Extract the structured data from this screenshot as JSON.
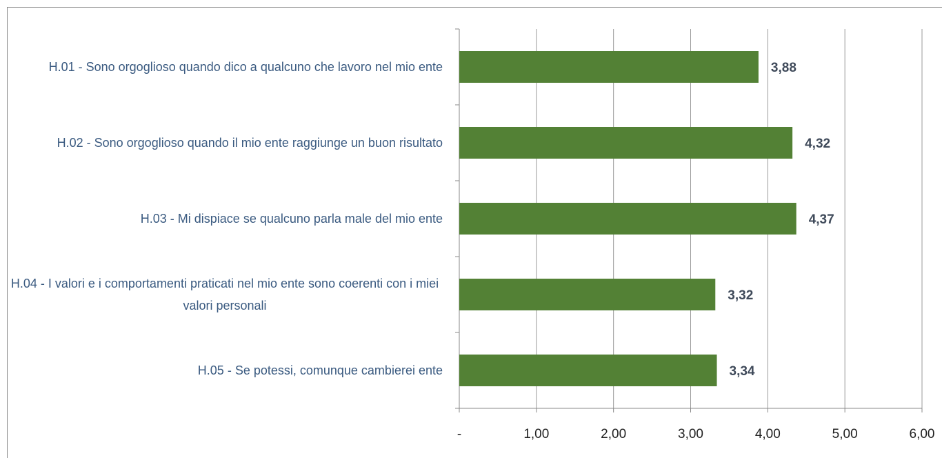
{
  "chart_data": {
    "type": "bar",
    "orientation": "horizontal",
    "categories": [
      "H.01 - Sono orgoglioso quando dico a qualcuno che lavoro nel mio ente",
      "H.02 - Sono orgoglioso quando il mio ente raggiunge un buon risultato",
      "H.03 - Mi dispiace se qualcuno parla male del mio ente",
      "H.04 - I valori e i comportamenti praticati nel mio ente sono coerenti con i miei valori personali",
      "H.05 - Se potessi, comunque cambierei ente"
    ],
    "values": [
      3.88,
      4.32,
      4.37,
      3.32,
      3.34
    ],
    "value_labels": [
      "3,88",
      "4,32",
      "4,37",
      "3,32",
      "3,34"
    ],
    "color": "#538135",
    "xlim": [
      0,
      6
    ],
    "xticks": [
      {
        "value": 0,
        "label": "-"
      },
      {
        "value": 1,
        "label": "1,00"
      },
      {
        "value": 2,
        "label": "2,00"
      },
      {
        "value": 3,
        "label": "3,00"
      },
      {
        "value": 4,
        "label": "4,00"
      },
      {
        "value": 5,
        "label": "5,00"
      },
      {
        "value": 6,
        "label": "6,00"
      }
    ],
    "grid": true
  }
}
